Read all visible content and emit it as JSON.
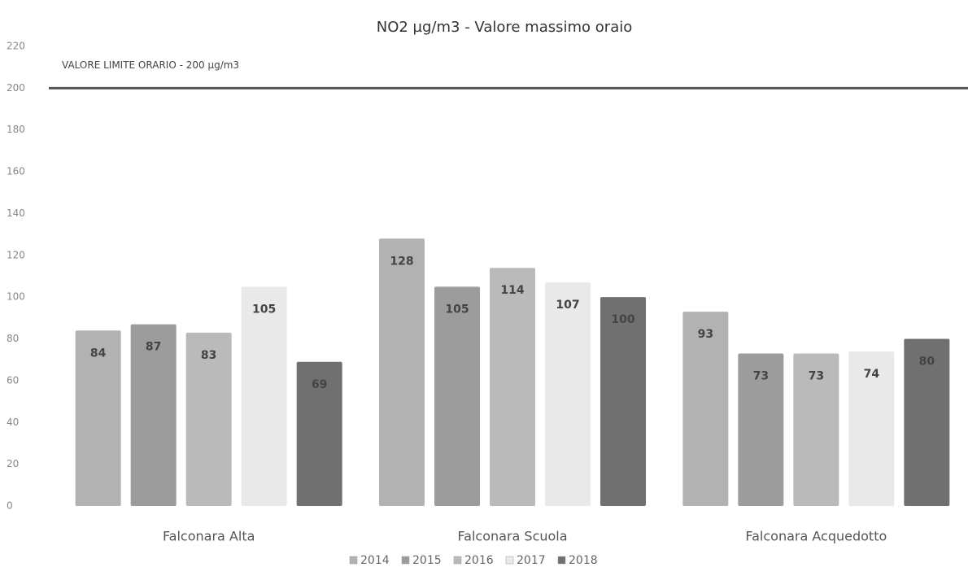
{
  "chart_data": {
    "type": "bar",
    "title": "NO2 µg/m3 - Valore massimo oraio",
    "categories": [
      "Falconara Alta",
      "Falconara Scuola",
      "Falconara Acquedotto"
    ],
    "series": [
      {
        "name": "2014",
        "color": "#b2b2b2",
        "values": [
          84,
          128,
          93
        ]
      },
      {
        "name": "2015",
        "color": "#9c9c9c",
        "values": [
          87,
          105,
          73
        ]
      },
      {
        "name": "2016",
        "color": "#bababa",
        "values": [
          83,
          114,
          73
        ]
      },
      {
        "name": "2017",
        "color": "#e9e9e9",
        "values": [
          105,
          107,
          74
        ]
      },
      {
        "name": "2018",
        "color": "#707070",
        "values": [
          69,
          100,
          80
        ]
      }
    ],
    "ylim": [
      0,
      220
    ],
    "yticks": [
      0,
      20,
      40,
      60,
      80,
      100,
      120,
      140,
      160,
      180,
      200,
      220
    ],
    "grid": false,
    "reference_line": {
      "value": 200,
      "label": "VALORE LIMITE ORARIO - 200 µg/m3",
      "color": "#555555"
    },
    "legend": "bottom"
  }
}
